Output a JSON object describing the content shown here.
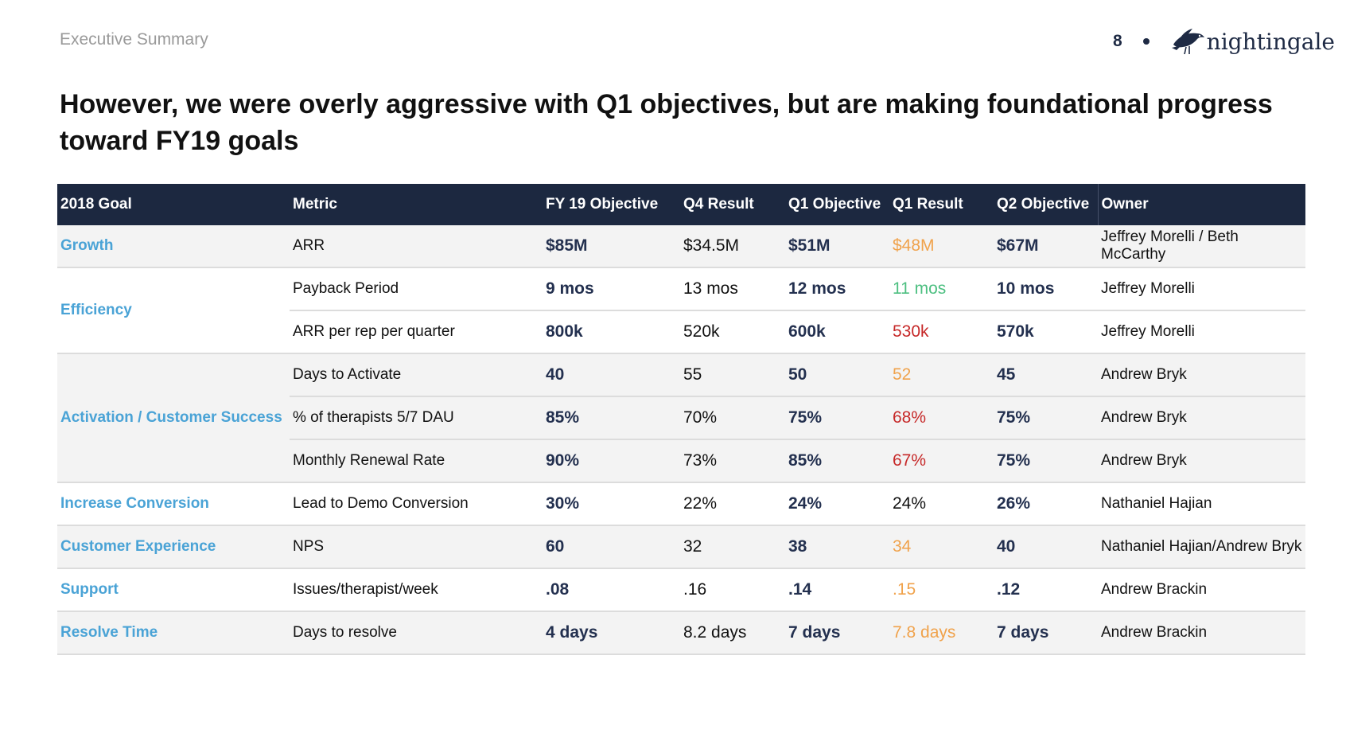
{
  "header": {
    "section": "Executive Summary",
    "page_number": "8",
    "brand_name": "nightingale",
    "logo_icon": "nightingale-bird-icon"
  },
  "headline": "However, we were overly aggressive with Q1 objectives, but are making foundational progress toward FY19 goals",
  "table": {
    "columns": [
      "2018 Goal",
      "Metric",
      "FY 19 Objective",
      "Q4 Result",
      "Q1 Objective",
      "Q1 Result",
      "Q2 Objective",
      "Owner"
    ],
    "goals": [
      "Growth",
      "Efficiency",
      "Activation / Customer Success",
      "Increase Conversion",
      "Customer Experience",
      "Support",
      "Resolve Time"
    ],
    "rows": [
      {
        "metric": "ARR",
        "fy19": "$85M",
        "q4": "$34.5M",
        "q1_obj": "$51M",
        "q1_res": "$48M",
        "q2_obj": "$67M",
        "owner": "Jeffrey Morelli / Beth McCarthy",
        "q1_res_color": "#f0a24b"
      },
      {
        "metric": "Payback Period",
        "fy19": "9 mos",
        "q4": "13 mos",
        "q1_obj": "12 mos",
        "q1_res": "11 mos",
        "q2_obj": "10 mos",
        "owner": "Jeffrey Morelli",
        "q1_res_color": "#4cbf80"
      },
      {
        "metric": "ARR per rep per quarter",
        "fy19": "800k",
        "q4": "520k",
        "q1_obj": "600k",
        "q1_res": "530k",
        "q2_obj": "570k",
        "owner": "Jeffrey Morelli",
        "q1_res_color": "#c62828"
      },
      {
        "metric": "Days to Activate",
        "fy19": "40",
        "q4": "55",
        "q1_obj": "50",
        "q1_res": "52",
        "q2_obj": "45",
        "owner": "Andrew Bryk",
        "q1_res_color": "#f0a24b"
      },
      {
        "metric": "% of therapists 5/7 DAU",
        "fy19": "85%",
        "q4": "70%",
        "q1_obj": "75%",
        "q1_res": "68%",
        "q2_obj": "75%",
        "owner": "Andrew Bryk",
        "q1_res_color": "#c62828"
      },
      {
        "metric": "Monthly Renewal Rate",
        "fy19": "90%",
        "q4": "73%",
        "q1_obj": "85%",
        "q1_res": "67%",
        "q2_obj": "75%",
        "owner": "Andrew Bryk",
        "q1_res_color": "#c62828"
      },
      {
        "metric": "Lead to Demo Conversion",
        "fy19": "30%",
        "q4": "22%",
        "q1_obj": "24%",
        "q1_res": "24%",
        "q2_obj": "26%",
        "owner": "Nathaniel Hajian",
        "q1_res_color": "#111111"
      },
      {
        "metric": "NPS",
        "fy19": "60",
        "q4": "32",
        "q1_obj": "38",
        "q1_res": "34",
        "q2_obj": "40",
        "owner": "Nathaniel Hajian/Andrew Bryk",
        "q1_res_color": "#f0a24b"
      },
      {
        "metric": "Issues/therapist/week",
        "fy19": ".08",
        "q4": ".16",
        "q1_obj": ".14",
        "q1_res": ".15",
        "q2_obj": ".12",
        "owner": "Andrew Brackin",
        "q1_res_color": "#f0a24b"
      },
      {
        "metric": "Days to resolve",
        "fy19": "4 days",
        "q4": "8.2 days",
        "q1_obj": "7 days",
        "q1_res": "7.8 days",
        "q2_obj": "7 days",
        "owner": "Andrew Brackin",
        "q1_res_color": "#f0a24b"
      }
    ]
  }
}
